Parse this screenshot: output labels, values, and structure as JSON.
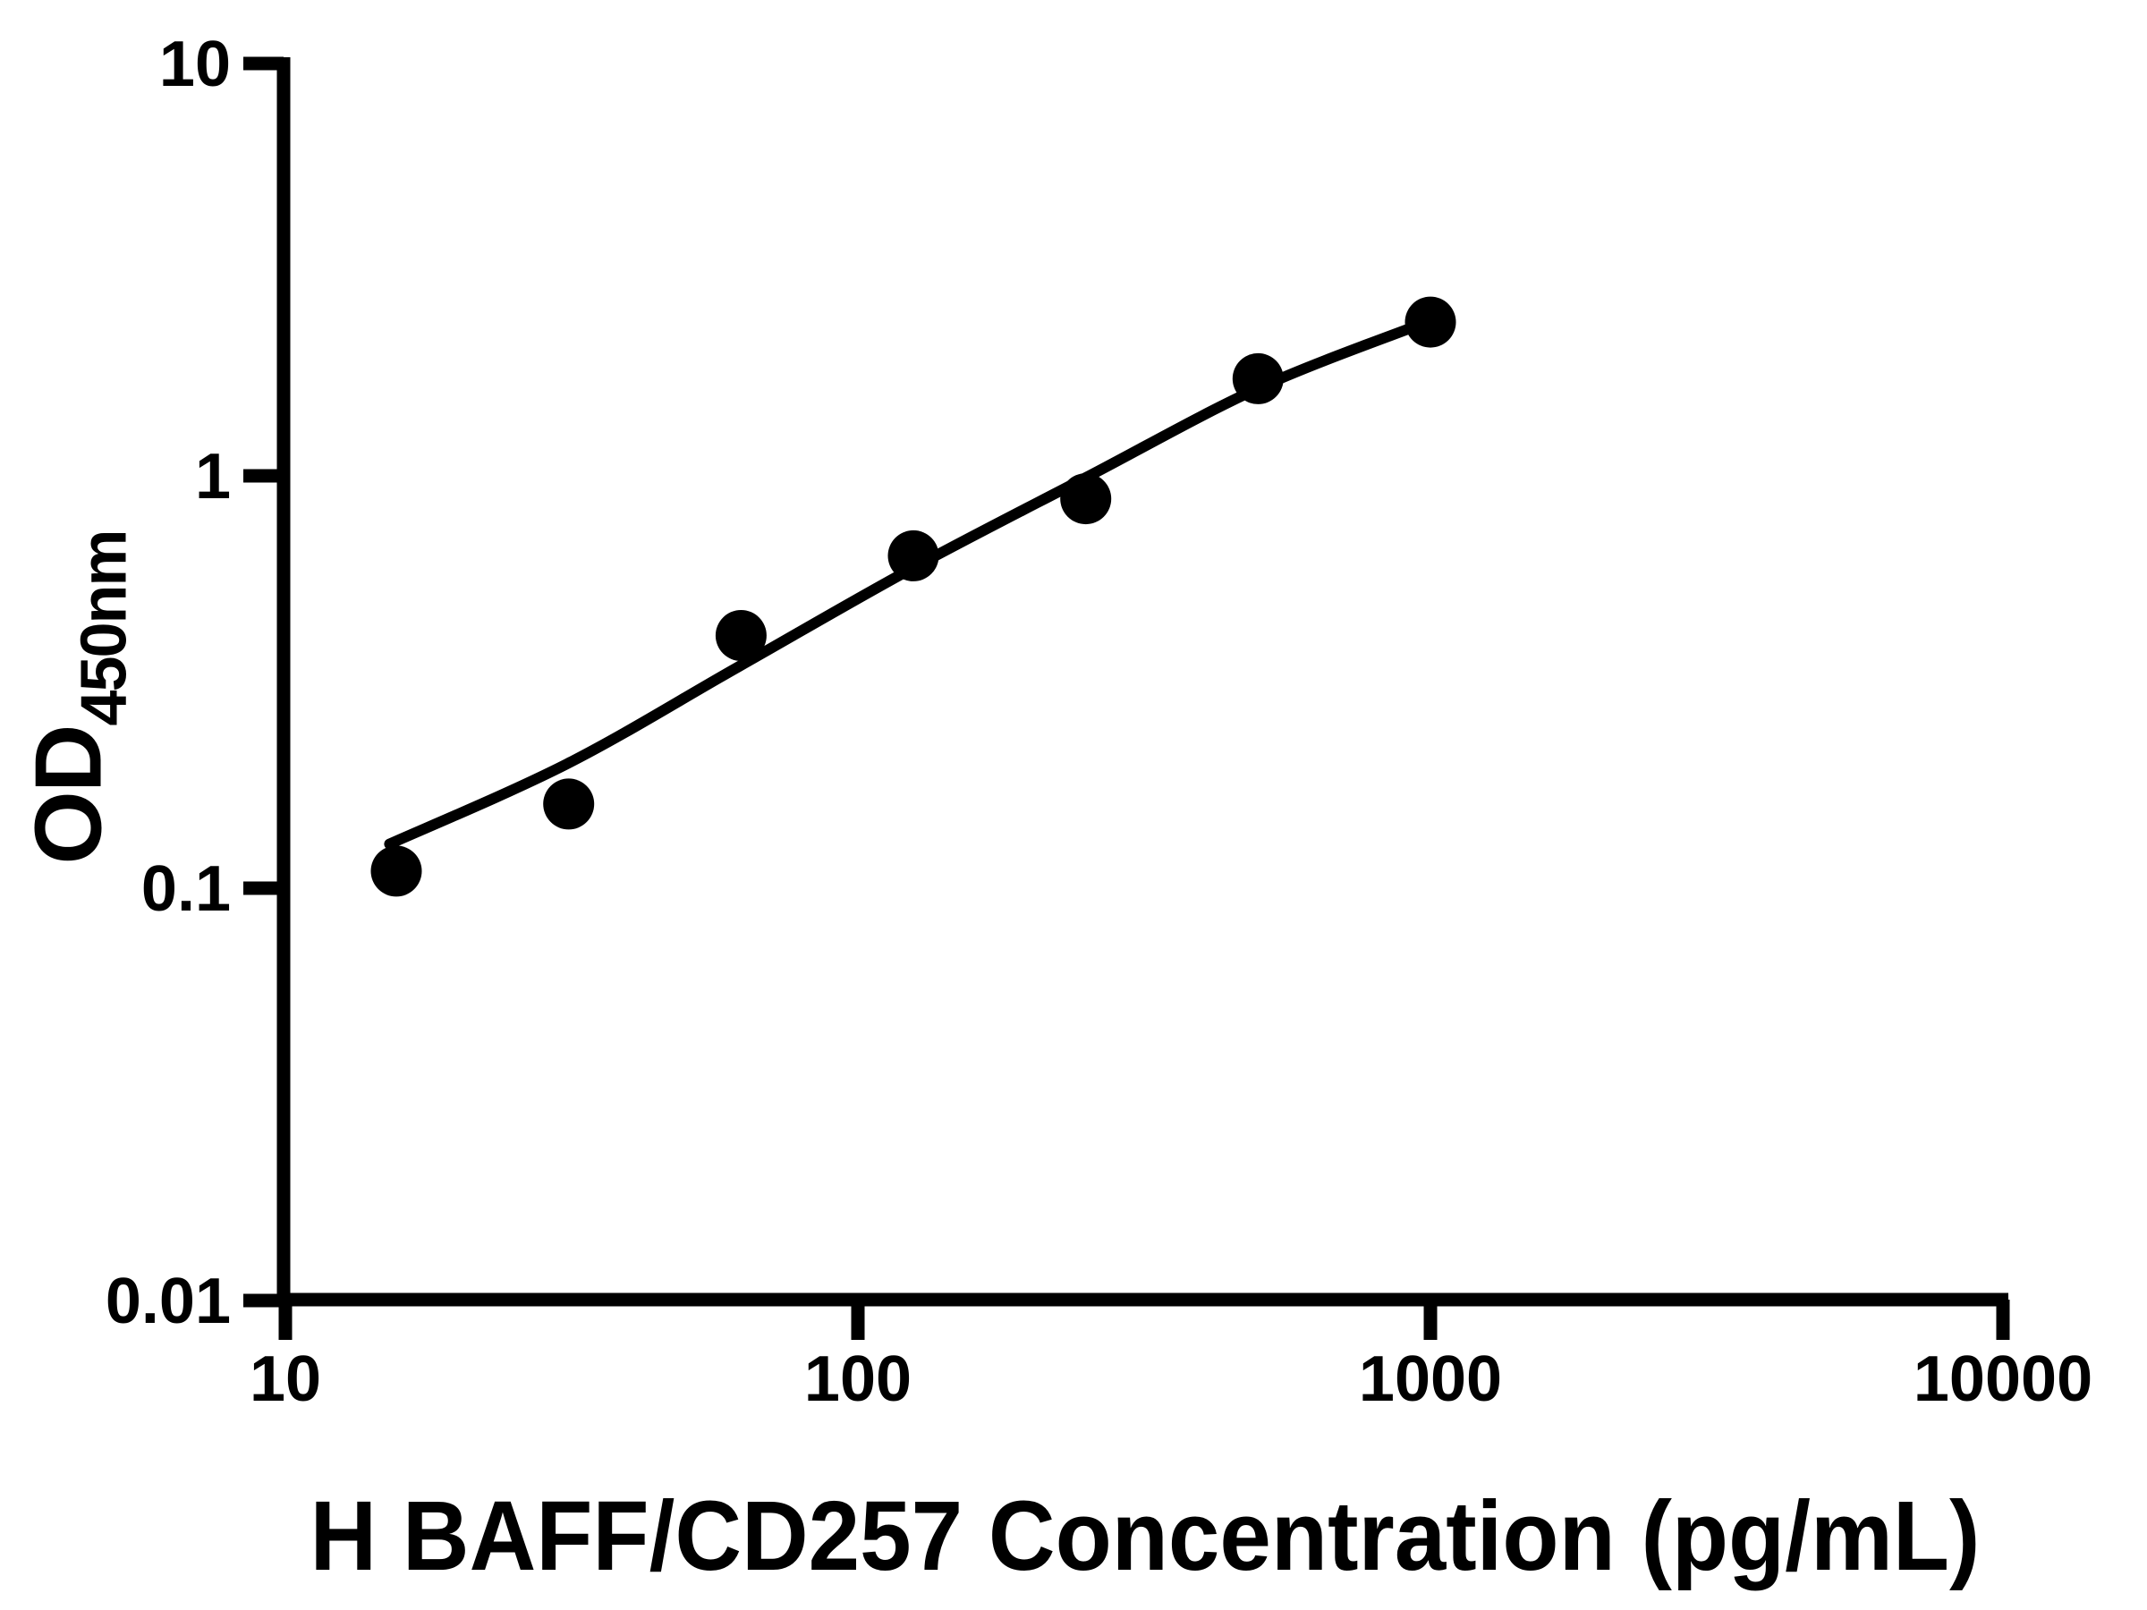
{
  "chart_data": {
    "type": "scatter",
    "title": "",
    "xlabel": "H BAFF/CD257 Concentration (pg/mL)",
    "ylabel_main": "OD",
    "ylabel_sub": "450nm",
    "x_scale": "log",
    "y_scale": "log",
    "xlim": [
      10,
      10000
    ],
    "ylim": [
      0.01,
      10
    ],
    "grid": false,
    "legend": "none",
    "colors": {
      "axis": "#000000",
      "points": "#000000",
      "curve": "#000000",
      "background": "#ffffff"
    },
    "x_ticks": [
      {
        "value": 10,
        "label": "10"
      },
      {
        "value": 100,
        "label": "100"
      },
      {
        "value": 1000,
        "label": "1000"
      },
      {
        "value": 10000,
        "label": "10000"
      }
    ],
    "y_ticks": [
      {
        "value": 10,
        "label": "10"
      },
      {
        "value": 1,
        "label": "1"
      },
      {
        "value": 0.1,
        "label": "0.1"
      },
      {
        "value": 0.01,
        "label": "0.01"
      }
    ],
    "series": [
      {
        "name": "Standard curve data points",
        "marker": "circle",
        "points": [
          {
            "x": 15.625,
            "y": 0.11
          },
          {
            "x": 31.25,
            "y": 0.16
          },
          {
            "x": 62.5,
            "y": 0.41
          },
          {
            "x": 125,
            "y": 0.64
          },
          {
            "x": 250,
            "y": 0.88
          },
          {
            "x": 500,
            "y": 1.72
          },
          {
            "x": 1000,
            "y": 2.36
          }
        ]
      }
    ],
    "fit_curve": {
      "name": "Fitted standard curve",
      "samples": [
        {
          "x": 15.2,
          "y": 0.128
        },
        {
          "x": 31,
          "y": 0.2
        },
        {
          "x": 62,
          "y": 0.345
        },
        {
          "x": 124,
          "y": 0.595
        },
        {
          "x": 250,
          "y": 0.99
        },
        {
          "x": 500,
          "y": 1.63
        },
        {
          "x": 968,
          "y": 2.34
        }
      ]
    }
  }
}
